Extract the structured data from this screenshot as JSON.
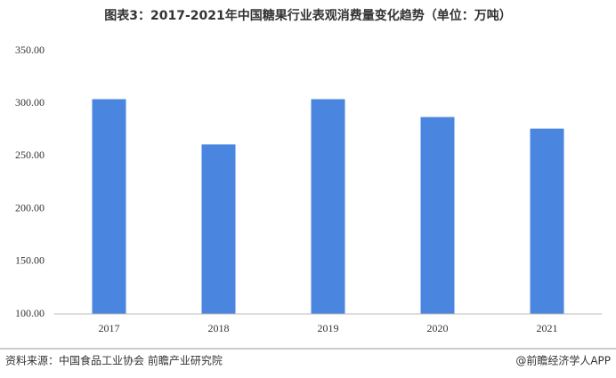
{
  "chart_data": {
    "type": "bar",
    "title": "图表3：2017-2021年中国糖果行业表观消费量变化趋势（单位：万吨）",
    "categories": [
      "2017",
      "2018",
      "2019",
      "2020",
      "2021"
    ],
    "values": [
      304,
      261,
      304,
      287,
      276
    ],
    "color": "#4a86e0",
    "ylim": [
      100,
      350
    ],
    "yticks": [
      {
        "value": 100,
        "label": "100.00"
      },
      {
        "value": 150,
        "label": "150.00"
      },
      {
        "value": 200,
        "label": "200.00"
      },
      {
        "value": 250,
        "label": "250.00"
      },
      {
        "value": 300,
        "label": "300.00"
      },
      {
        "value": 350,
        "label": "350.00"
      }
    ],
    "grid": false,
    "source": "资料来源：中国食品工业协会 前瞻产业研究院",
    "credit": "@前瞻经济学人APP"
  }
}
